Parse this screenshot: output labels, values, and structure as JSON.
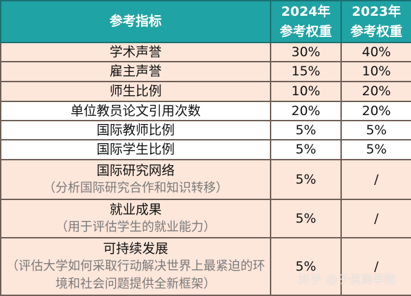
{
  "table": {
    "header": {
      "indicator": "参考指标",
      "year_2024_line1": "2024年",
      "year_2024_line2": "参考权重",
      "year_2023_line1": "2023年",
      "year_2023_line2": "参考权重"
    },
    "rows": [
      {
        "label": "学术声誉",
        "sub": "",
        "w2024": "30%",
        "w2023": "40%",
        "bg": "peach"
      },
      {
        "label": "雇主声誉",
        "sub": "",
        "w2024": "15%",
        "w2023": "10%",
        "bg": "peach"
      },
      {
        "label": "师生比例",
        "sub": "",
        "w2024": "10%",
        "w2023": "20%",
        "bg": "peach"
      },
      {
        "label": "单位教员论文引用次数",
        "sub": "",
        "w2024": "20%",
        "w2023": "20%",
        "bg": "white"
      },
      {
        "label": "国际教师比例",
        "sub": "",
        "w2024": "5%",
        "w2023": "5%",
        "bg": "white"
      },
      {
        "label": "国际学生比例",
        "sub": "",
        "w2024": "5%",
        "w2023": "5%",
        "bg": "white"
      },
      {
        "label": "国际研究网络",
        "sub": "（分析国际研究合作和知识转移）",
        "w2024": "5%",
        "w2023": "/",
        "bg": "peach"
      },
      {
        "label": "就业成果",
        "sub": "（用于评估学生的就业能力）",
        "w2024": "5%",
        "w2023": "/",
        "bg": "peach"
      },
      {
        "label": "可持续发展",
        "sub": "（评估大学如何采取行动解决世界上最紧迫的环境和社会问题提供全新框架）",
        "w2024": "5%",
        "w2023": "/",
        "bg": "peach"
      }
    ]
  },
  "watermark": "知乎 @子信商学院",
  "colors": {
    "header_bg": "#20a3a4",
    "header_text": "#ffffff",
    "row_peach": "#fde6da",
    "row_white": "#ffffff",
    "border": "#6e5e55",
    "sub_text": "#7a7a7a"
  }
}
